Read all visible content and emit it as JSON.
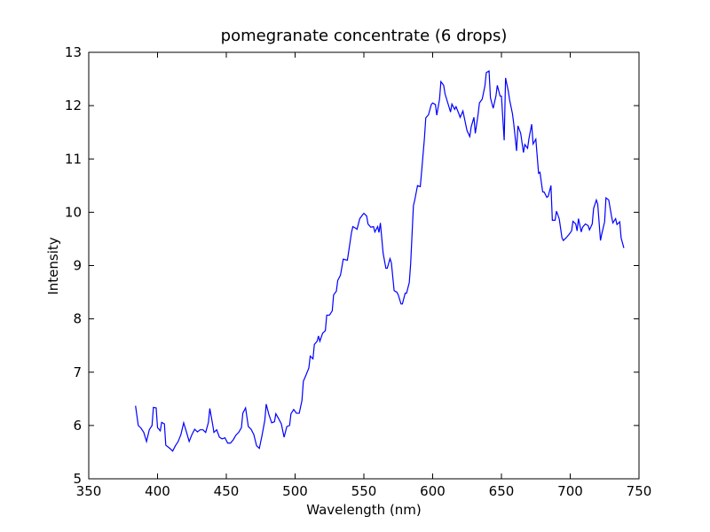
{
  "chart_data": {
    "type": "line",
    "title": "pomegranate concentrate (6 drops)",
    "x_label": "Wavelength (nm)",
    "y_label": "Intensity",
    "xlim": [
      350,
      750
    ],
    "xticks": [
      350,
      400,
      450,
      500,
      550,
      600,
      650,
      700,
      750
    ],
    "ylim": [
      5,
      13
    ],
    "yticks": [
      5,
      6,
      7,
      8,
      9,
      10,
      11,
      12,
      13
    ],
    "series": [
      {
        "color": "#0000ff",
        "x": [
          384,
          386,
          388,
          390,
          392,
          394,
          396,
          397,
          399,
          400,
          402,
          403,
          405,
          406,
          409,
          411,
          413,
          415,
          417,
          419,
          421,
          423,
          425,
          427,
          429,
          431,
          433,
          435,
          437,
          438,
          440,
          441,
          443,
          445,
          447,
          449,
          451,
          453,
          455,
          457,
          459,
          461,
          462,
          464,
          466,
          468,
          470,
          472,
          474,
          476,
          478,
          479,
          481,
          483,
          485,
          486,
          488,
          490,
          492,
          494,
          496,
          497,
          499,
          501,
          503,
          505,
          506,
          508,
          510,
          511,
          513,
          514,
          516,
          517,
          518,
          520,
          522,
          523,
          525,
          527,
          528,
          530,
          531,
          533,
          535,
          538,
          539,
          541,
          542,
          544,
          545,
          547,
          549,
          550,
          552,
          553,
          555,
          557,
          558,
          560,
          561,
          562,
          564,
          566,
          567,
          569,
          570,
          572,
          574,
          575,
          577,
          578,
          580,
          581,
          583,
          584,
          586,
          587,
          589,
          591,
          592,
          594,
          595,
          597,
          599,
          600,
          602,
          603,
          605,
          606,
          608,
          609,
          611,
          613,
          614,
          616,
          617,
          619,
          620,
          622,
          624,
          625,
          627,
          628,
          630,
          631,
          633,
          634,
          636,
          638,
          639,
          641,
          642,
          644,
          646,
          647,
          649,
          650,
          652,
          653,
          655,
          656,
          658,
          659,
          661,
          662,
          664,
          666,
          667,
          669,
          670,
          672,
          673,
          675,
          677,
          678,
          680,
          681,
          683,
          684,
          686,
          687,
          689,
          690,
          692,
          694,
          695,
          697,
          699,
          701,
          702,
          704,
          705,
          706,
          708,
          709,
          711,
          713,
          714,
          716,
          717,
          719,
          720,
          722,
          723,
          725,
          726,
          728,
          730,
          731,
          733,
          734,
          736,
          737,
          739
        ],
        "values": [
          6.37,
          6.0,
          5.95,
          5.87,
          5.7,
          5.92,
          6.0,
          6.34,
          6.33,
          5.96,
          5.9,
          6.06,
          6.03,
          5.63,
          5.57,
          5.52,
          5.62,
          5.7,
          5.83,
          6.05,
          5.88,
          5.7,
          5.83,
          5.93,
          5.88,
          5.92,
          5.92,
          5.87,
          6.06,
          6.32,
          6.03,
          5.87,
          5.92,
          5.78,
          5.75,
          5.77,
          5.67,
          5.67,
          5.73,
          5.82,
          5.87,
          5.96,
          6.23,
          6.33,
          5.98,
          5.93,
          5.83,
          5.62,
          5.57,
          5.82,
          6.1,
          6.4,
          6.2,
          6.05,
          6.07,
          6.22,
          6.13,
          6.03,
          5.78,
          5.98,
          6.0,
          6.22,
          6.3,
          6.23,
          6.23,
          6.47,
          6.83,
          6.95,
          7.08,
          7.3,
          7.25,
          7.52,
          7.58,
          7.68,
          7.58,
          7.73,
          7.78,
          8.07,
          8.07,
          8.15,
          8.45,
          8.52,
          8.72,
          8.82,
          9.12,
          9.1,
          9.27,
          9.62,
          9.73,
          9.7,
          9.68,
          9.88,
          9.95,
          9.98,
          9.93,
          9.78,
          9.72,
          9.73,
          9.63,
          9.73,
          9.62,
          9.8,
          9.23,
          8.95,
          8.95,
          9.13,
          9.05,
          8.53,
          8.5,
          8.45,
          8.28,
          8.28,
          8.48,
          8.48,
          8.68,
          9.03,
          10.12,
          10.23,
          10.5,
          10.48,
          10.77,
          11.38,
          11.77,
          11.83,
          12.02,
          12.05,
          12.02,
          11.82,
          12.12,
          12.45,
          12.38,
          12.22,
          12.05,
          11.88,
          12.03,
          11.93,
          11.98,
          11.85,
          11.78,
          11.9,
          11.65,
          11.53,
          11.42,
          11.6,
          11.78,
          11.48,
          11.83,
          12.05,
          12.12,
          12.37,
          12.62,
          12.65,
          12.15,
          11.95,
          12.18,
          12.38,
          12.18,
          12.18,
          11.35,
          12.52,
          12.27,
          12.1,
          11.85,
          11.65,
          11.15,
          11.62,
          11.48,
          11.12,
          11.27,
          11.2,
          11.38,
          11.65,
          11.28,
          11.37,
          10.73,
          10.75,
          10.38,
          10.38,
          10.28,
          10.3,
          10.5,
          9.85,
          9.85,
          10.02,
          9.88,
          9.52,
          9.47,
          9.52,
          9.58,
          9.65,
          9.83,
          9.78,
          9.65,
          9.88,
          9.63,
          9.72,
          9.78,
          9.75,
          9.67,
          9.78,
          10.07,
          10.23,
          10.15,
          9.47,
          9.6,
          9.82,
          10.27,
          10.23,
          9.93,
          9.8,
          9.88,
          9.77,
          9.82,
          9.52,
          9.33
        ]
      }
    ]
  }
}
